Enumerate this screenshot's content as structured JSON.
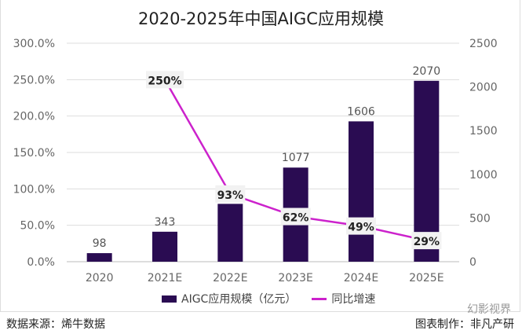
{
  "chart_data": {
    "type": "bar",
    "title": "2020-2025年中国AIGC应用规模",
    "categories": [
      "2020",
      "2021E",
      "2022E",
      "2023E",
      "2024E",
      "2025E"
    ],
    "series": [
      {
        "name": "AIGC应用规模（亿元）",
        "type": "bar",
        "axis": "right",
        "values": [
          98,
          343,
          662,
          1077,
          1606,
          2070
        ],
        "labels": [
          "98",
          "343",
          "",
          "1077",
          "1606",
          "2070"
        ],
        "color": "#2a0c52"
      },
      {
        "name": "同比增速",
        "type": "line",
        "axis": "left",
        "values": [
          null,
          250,
          93,
          62,
          49,
          29
        ],
        "labels": [
          "",
          "250%",
          "93%",
          "62%",
          "49%",
          "29%"
        ],
        "color": "#cc22cc"
      }
    ],
    "left_axis": {
      "range": [
        0,
        300
      ],
      "ticks": [
        "0.0%",
        "50.0%",
        "100.0%",
        "150.0%",
        "200.0%",
        "250.0%",
        "300.0%"
      ]
    },
    "right_axis": {
      "range": [
        0,
        2500
      ],
      "ticks": [
        "0",
        "500",
        "1000",
        "1500",
        "2000",
        "2500"
      ]
    },
    "grid": true,
    "legend": "bottom"
  },
  "footer": {
    "source": "数据来源：烯牛数据",
    "credit": "图表制作：非凡产研",
    "watermark": "幻影视界"
  }
}
